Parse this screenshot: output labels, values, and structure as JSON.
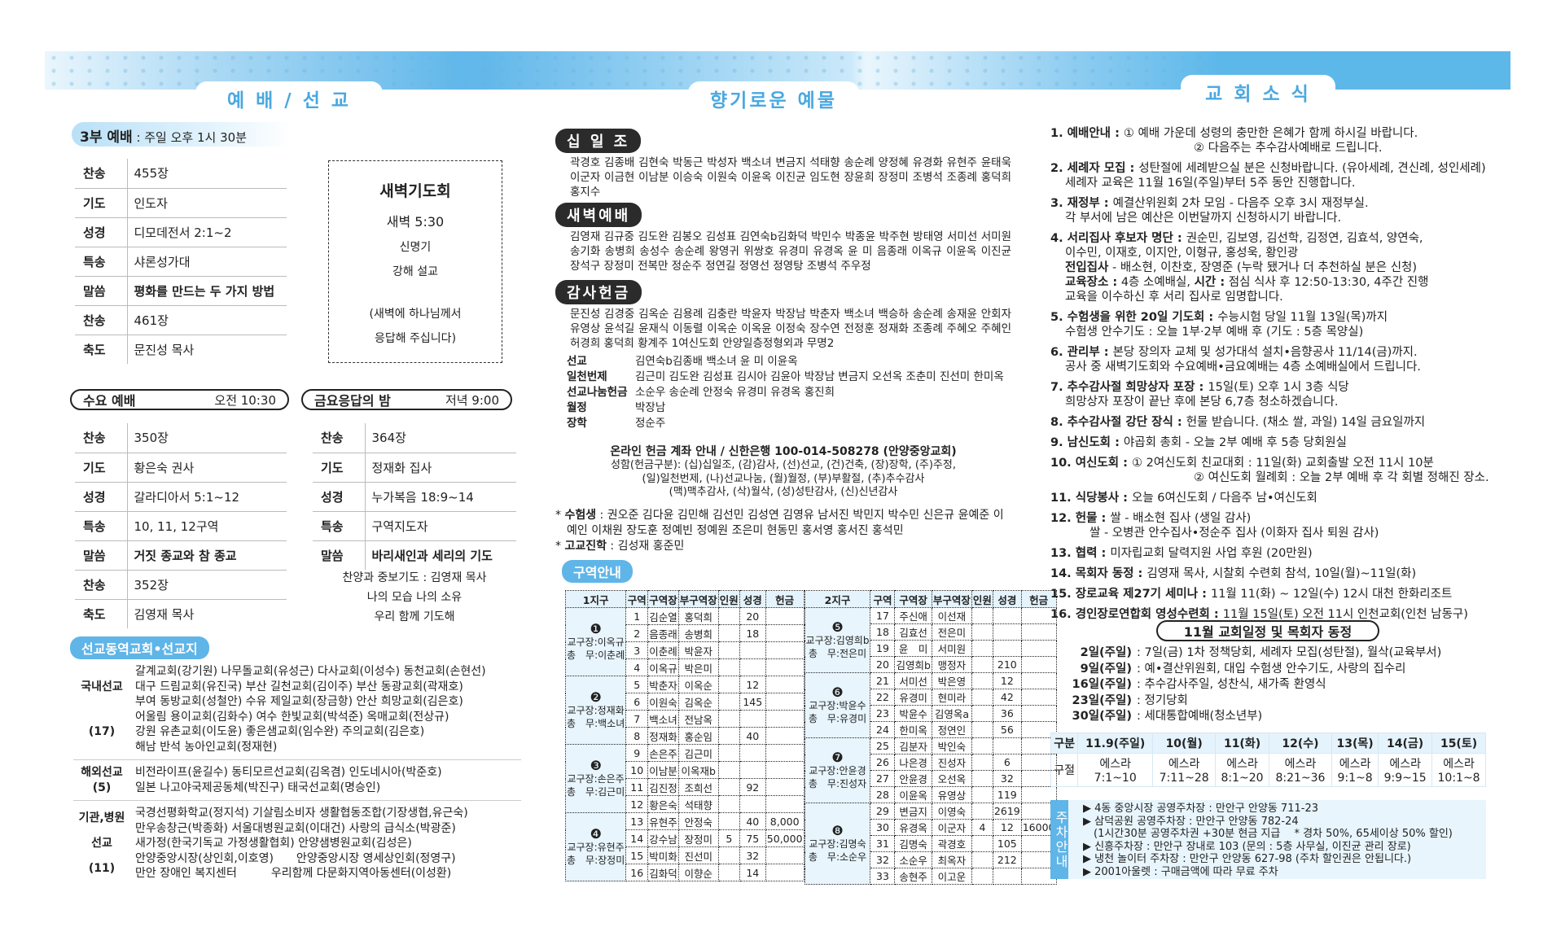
{
  "colors": {
    "banner": "#5db8ea",
    "accent": "#5fb5e8",
    "dark_pill": "#2b2b2b",
    "table_header": "#e5f3fc"
  },
  "headers": {
    "worship": "예 배 / 선 교",
    "offering": "향기로운 예물",
    "news": "교 회 소 식"
  },
  "sunday3": {
    "title": "3부 예배",
    "time": " : 주일 오후 1시 30분",
    "rows": [
      {
        "l": "찬송",
        "v": "455장"
      },
      {
        "l": "기도",
        "v": "인도자"
      },
      {
        "l": "성경",
        "v": "디모데전서 2:1~2"
      },
      {
        "l": "특송",
        "v": "샤론성가대"
      },
      {
        "l": "말씀",
        "v": "평화를 만드는 두 가지 방법",
        "b": true
      },
      {
        "l": "찬송",
        "v": "461장"
      },
      {
        "l": "축도",
        "v": "문진성 목사"
      }
    ]
  },
  "dawn": {
    "title": "새벽기도회",
    "time": "새벽 5:30",
    "leader": "신명기",
    "sermon": "강해 설교",
    "note1": "(새벽에 하나님께서",
    "note2": "응답해 주십니다)"
  },
  "wednesday": {
    "title": "수요 예배",
    "time": "오전 10:30",
    "rows": [
      {
        "l": "찬송",
        "v": "350장"
      },
      {
        "l": "기도",
        "v": "황은숙 권사"
      },
      {
        "l": "성경",
        "v": "갈라디아서 5:1~12"
      },
      {
        "l": "특송",
        "v": "10, 11, 12구역"
      },
      {
        "l": "말씀",
        "v": "거짓 종교와 참 종교",
        "b": true
      },
      {
        "l": "찬송",
        "v": "352장"
      },
      {
        "l": "축도",
        "v": "김영재 목사"
      }
    ]
  },
  "friday": {
    "title": "금요응답의 밤",
    "time": "저녁 9:00",
    "rows": [
      {
        "l": "찬송",
        "v": "364장"
      },
      {
        "l": "기도",
        "v": "정재화 집사"
      },
      {
        "l": "성경",
        "v": "누가복음 18:9~14"
      },
      {
        "l": "특송",
        "v": "구역지도자"
      },
      {
        "l": "말씀",
        "v": "바리새인과 세리의 기도",
        "b": true
      }
    ],
    "extra": [
      "찬양과 중보기도 : 김영재 목사",
      "나의 모습 나의 소유",
      "우리 함께 기도해"
    ]
  },
  "missions": {
    "title": "선교동역교회•선교지",
    "sections": [
      {
        "head": [
          "국내선교",
          "(17)"
        ],
        "lines": [
          "갈계교회(강기원) 나무돌교회(유성근) 다사교회(이성수) 동천교회(손현선)",
          "대구 드림교회(유진국) 부산 길천교회(김이주) 부산 동광교회(곽재호)",
          "부여 동방교회(성철안) 수유 제일교회(장금항) 안산 희망교회(김은호)",
          "어울림 용이교회(김화수) 여수 한빛교회(박석준) 옥매교회(전상규)",
          "강원 유촌교회(이도윤) 좋은샘교회(임수완) 주의교회(김은호)",
          "해남 반석 농아인교회(정재현)"
        ]
      },
      {
        "head": [
          "해외선교",
          "(5)"
        ],
        "lines": [
          "비전라이프(윤길수) 동티모르선교회(김옥겸) 인도네시아(박준호)",
          "일본 나고야국제공동체(박진구) 태국선교회(명승인)"
        ]
      },
      {
        "head": [
          "기관,병원",
          "선교",
          "(11)"
        ],
        "lines": [
          "국경선평화학교(정지석) 기살림소비자 생활협동조합(기장생협,유근숙)",
          "만우송창근(박종화) 서울대병원교회(이대건) 사랑의 급식소(박광준)",
          "새가정(한국기독교 가정생활협회) 안양샘병원교회(김성은)",
          "안양중앙시장(상인회,이호영)　　안양중앙시장 영세상인회(정영구)",
          "만안 장애인 복지센터　　　우리함께 다문화지역아동센터(이성환)"
        ]
      }
    ]
  },
  "tithe": {
    "title": "십 일 조",
    "names": "곽경호 김종배 김현숙 박동근 박성자 백소녀 변금지 석태향 송순례 양정혜 유경화 유현주 윤태욱 이군자 이금현 이남분 이승숙 이원숙 이윤옥 이진균 임도현 장윤희 장정미 조병석 조종례 홍덕희 홍지수"
  },
  "dawn_offering": {
    "title": "새벽예배",
    "names": "김영재 김규중 김도완 김봉오 김성표 김연숙b김화덕 박민수 박종윤 박주현 방태영 서미선 서미원 송기화 송병희 송성수 송순례 왕영귀 위쌍호 유경미 유경옥 윤 미 음종래 이옥규 이윤옥 이진균 장석구 장정미 전복만 정순주 정연길 정영선 정영탕 조병석 주우정"
  },
  "thanks": {
    "title": "감사헌금",
    "names": "문진성 김경중 김옥순 김용례 김충란 박윤자 박장남 박춘자 백소녀 백승하 송순례 송재윤 안회자 유영상 윤석길 윤재식 이동렬 이옥순 이옥윤 이정숙 장수연 전정훈 정재화 조종례 주혜오 주혜인 허경희 홍덕희 황계주 1여신도회 안양일층정형외과 무명2"
  },
  "other_offerings": [
    {
      "k": "선교",
      "v": "김연숙b김종배 백소녀 윤 미 이윤옥"
    },
    {
      "k": "일천번제",
      "v": "김근미 김도완 김성표 김시아 김윤아 박장남 변금지 오선옥 조춘미 진선미 한미옥"
    },
    {
      "k": "선교나눔헌금",
      "v": "소순우 송순례 안정숙 유경미 유경옥 홍진희"
    },
    {
      "k": "월정",
      "v": "박장남"
    },
    {
      "k": "장학",
      "v": "정순주"
    }
  ],
  "online": {
    "title": "온라인 헌금 계좌 안내 / 신한은행 100-014-508278 (안양중앙교회)",
    "lines": [
      "성함(헌금구분): (십)십일조, (감)감사, (선)선교, (건)건축, (장)장학, (주)주정,",
      "(일)일천번제, (나)선교나눔, (월)월정, (부)부활절, (추)추수감사",
      "(맥)맥추감사, (삭)월삭, (성)성탄감사, (신)신년감사"
    ]
  },
  "students": {
    "label": "수험생",
    "names": "권오준 김다윤 김민해 김선민 김성연 김영유 남서진 박민지 박수민 신은규 윤예준 이예인 이채원 장도훈 정예빈 정예원 조은미 현동민 홍서영 홍서진 홍석민"
  },
  "highschool": {
    "label": "고교진학",
    "names": "김성재 홍준민"
  },
  "district": {
    "title": "구역안내",
    "columns": [
      "구역",
      "구역장",
      "부구역장",
      "인원",
      "성경",
      "헌금"
    ],
    "tables": [
      {
        "name": "1지구",
        "groups": [
          {
            "badge": "❶",
            "leader": "교구장:이옥규",
            "sec": "총　무:이춘례",
            "rows": [
              [
                "1",
                "김순열",
                "홍덕희",
                "",
                "20",
                ""
              ],
              [
                "2",
                "음종래",
                "송병희",
                "",
                "18",
                ""
              ],
              [
                "3",
                "이춘례",
                "박윤자",
                "",
                "",
                ""
              ],
              [
                "4",
                "이옥규",
                "박은미",
                "",
                "",
                ""
              ]
            ]
          },
          {
            "badge": "❷",
            "leader": "교구장:정재화",
            "sec": "총　무:백소녀",
            "rows": [
              [
                "5",
                "박춘자",
                "이옥순",
                "",
                "12",
                ""
              ],
              [
                "6",
                "이원숙",
                "김옥순",
                "",
                "145",
                ""
              ],
              [
                "7",
                "백소녀",
                "전남옥",
                "",
                "",
                ""
              ],
              [
                "8",
                "정재화",
                "홍순임",
                "",
                "40",
                ""
              ]
            ]
          },
          {
            "badge": "❸",
            "leader": "교구장:손은주",
            "sec": "총　무:김근미",
            "rows": [
              [
                "9",
                "손은주",
                "김근미",
                "",
                "",
                ""
              ],
              [
                "10",
                "이남분",
                "이옥재b",
                "",
                "",
                ""
              ],
              [
                "11",
                "김진정",
                "조희선",
                "",
                "92",
                ""
              ],
              [
                "12",
                "황은숙",
                "석태향",
                "",
                "",
                ""
              ]
            ]
          },
          {
            "badge": "❹",
            "leader": "교구장:유현주",
            "sec": "총　무:장정미",
            "rows": [
              [
                "13",
                "유현주",
                "안정숙",
                "",
                "40",
                "8,000"
              ],
              [
                "14",
                "강수남",
                "장정미",
                "5",
                "75",
                "50,000"
              ],
              [
                "15",
                "박미화",
                "진선미",
                "",
                "32",
                ""
              ],
              [
                "16",
                "김화덕",
                "이향순",
                "",
                "14",
                ""
              ]
            ]
          }
        ]
      },
      {
        "name": "2지구",
        "groups": [
          {
            "badge": "❺",
            "leader": "교구장:김영희b",
            "sec": "총　무:전은미",
            "rows": [
              [
                "17",
                "주신애",
                "이선재",
                "",
                "",
                ""
              ],
              [
                "18",
                "김효선",
                "전은미",
                "",
                "",
                ""
              ],
              [
                "19",
                "윤　미",
                "서미원",
                "",
                "",
                ""
              ],
              [
                "20",
                "김영희b",
                "맹정자",
                "",
                "210",
                ""
              ]
            ]
          },
          {
            "badge": "❻",
            "leader": "교구장:박윤수",
            "sec": "총　무:유경미",
            "rows": [
              [
                "21",
                "서미선",
                "박은영",
                "",
                "12",
                ""
              ],
              [
                "22",
                "유경미",
                "현미라",
                "",
                "42",
                ""
              ],
              [
                "23",
                "박윤수",
                "김영옥a",
                "",
                "36",
                ""
              ],
              [
                "24",
                "한미옥",
                "정연인",
                "",
                "56",
                ""
              ]
            ]
          },
          {
            "badge": "❼",
            "leader": "교구장:안윤경",
            "sec": "총　무:진성자",
            "rows": [
              [
                "25",
                "김분자",
                "박인숙",
                "",
                "",
                ""
              ],
              [
                "26",
                "나은경",
                "진성자",
                "",
                "6",
                ""
              ],
              [
                "27",
                "안윤경",
                "오선옥",
                "",
                "32",
                ""
              ],
              [
                "28",
                "이윤옥",
                "유영상",
                "",
                "119",
                ""
              ]
            ]
          },
          {
            "badge": "❽",
            "leader": "교구장:김명숙",
            "sec": "총　무:소순우",
            "rows": [
              [
                "29",
                "변금지",
                "이영숙",
                "",
                "2619",
                ""
              ],
              [
                "30",
                "유경옥",
                "이군자",
                "4",
                "12",
                "16000"
              ],
              [
                "31",
                "김명숙",
                "곽경호",
                "",
                "105",
                ""
              ],
              [
                "32",
                "소순우",
                "최옥자",
                "",
                "212",
                ""
              ],
              [
                "33",
                "송현주",
                "이고운",
                "",
                "",
                ""
              ]
            ]
          }
        ]
      }
    ]
  },
  "news": [
    {
      "n": "1.",
      "k": "예배안내",
      "lines": [
        [
          [
            "",
            "① 예배 가운데 성령의 충만한 은혜가 함께 하시길 바랍니다."
          ]
        ],
        [
          [
            "pad",
            "② 다음주는 추수감사예배로 드립니다."
          ]
        ]
      ]
    },
    {
      "n": "2.",
      "k": "세례자 모집",
      "lines": [
        [
          [
            "",
            "성탄절에 세례받으실 분은 신청바랍니다. (유아세례, 견신례, 성인세례)"
          ]
        ],
        [
          [
            "ln",
            "세례자 교육은 11월 16일(주일)부터 5주 동안 진행합니다."
          ]
        ]
      ]
    },
    {
      "n": "3.",
      "k": "재정부",
      "lines": [
        [
          [
            "",
            "예결산위원회 2차 모임 - 다음주 오후 3시 재정부실."
          ]
        ],
        [
          [
            "ln",
            "각 부서에 남은 예산은 이번달까지 신청하시기 바랍니다."
          ]
        ]
      ]
    },
    {
      "n": "4.",
      "k": "서리집사 후보자 명단",
      "lines": [
        [
          [
            "",
            "권순민, 김보영, 김선학, 김정연, 김효석, 양연숙,"
          ]
        ],
        [
          [
            "ln",
            "이수민, 이재호, 이지안, 이형규, 홍성욱, 황인광"
          ]
        ],
        [
          [
            "lnb",
            "전입집사"
          ],
          [
            "ln2",
            " - 배소현, 이찬호, 장영준 (누락 됐거나 더 추천하실 분은 신청)"
          ]
        ],
        [
          [
            "lnb",
            "교육장소 :"
          ],
          [
            "ln2",
            " 4층 소예배실, "
          ],
          [
            "b",
            "시간 :"
          ],
          [
            "ln2",
            " 점심 식사 후 12:50-13:30, 4주간 진행"
          ]
        ],
        [
          [
            "ln",
            "교육을 이수하신 후 서리 집사로 임명합니다."
          ]
        ]
      ]
    },
    {
      "n": "5.",
      "k": "수험생을 위한 20일 기도회",
      "lines": [
        [
          [
            "",
            "수능시험 당일 11월 13일(목)까지"
          ]
        ],
        [
          [
            "ln",
            "수험생 안수기도 : 오늘 1부·2부 예배 후 (기도 : 5층 목양실)"
          ]
        ]
      ]
    },
    {
      "n": "6.",
      "k": "관리부",
      "lines": [
        [
          [
            "",
            "본당 장의자 교체 및 성가대석 설치•음향공사 11/14(금)까지."
          ]
        ],
        [
          [
            "ln",
            "공사 중 새벽기도회와 수요예배•금요예배는 4층 소예배실에서 드립니다."
          ]
        ]
      ]
    },
    {
      "n": "7.",
      "k": "추수감사절 희망상자 포장",
      "lines": [
        [
          [
            "",
            "15일(토) 오후 1시 3층 식당"
          ]
        ],
        [
          [
            "ln",
            "희망상자 포장이 끝난 후에 본당 6,7층 청소하겠습니다."
          ]
        ]
      ]
    },
    {
      "n": "8.",
      "k": "추수감사절 강단 장식",
      "lines": [
        [
          [
            "",
            "헌물 받습니다. (채소 쌀, 과일) 14일 금요일까지"
          ]
        ]
      ]
    },
    {
      "n": "9.",
      "k": "남신도회",
      "lines": [
        [
          [
            "",
            "야곱회 총회 - 오늘 2부 예배 후 5층 당회원실"
          ]
        ]
      ]
    },
    {
      "n": "10.",
      "k": "여신도회",
      "lines": [
        [
          [
            "",
            "① 2여신도회 친교대회 : 11일(화) 교회출발 오전 11시 10분"
          ]
        ],
        [
          [
            "pad",
            "② 여신도회 월례회 : 오늘 2부 예배 후 각 회별 정해진 장소."
          ]
        ]
      ]
    },
    {
      "n": "11.",
      "k": "식당봉사",
      "lines": [
        [
          [
            "",
            "오늘 6여신도회 / 다음주 남•여신도회"
          ]
        ]
      ]
    },
    {
      "n": "12.",
      "k": "헌물",
      "lines": [
        [
          [
            "",
            "쌀 - 배소현 집사 (생일 감사)"
          ]
        ],
        [
          [
            "padm",
            "쌀 - 오병관 안수집사•정순주 집사 (이화자 집사 퇴원 감사)"
          ]
        ]
      ]
    },
    {
      "n": "13.",
      "k": "협력",
      "lines": [
        [
          [
            "",
            "미자립교회 달력지원 사업 후원 (20만원)"
          ]
        ]
      ]
    },
    {
      "n": "14.",
      "k": "목회자 동정",
      "lines": [
        [
          [
            "",
            "김영재 목사, 시찰회 수련회 참석, 10일(월)~11일(화)"
          ]
        ]
      ]
    },
    {
      "n": "15.",
      "k": "장로교육 제27기 세미나",
      "lines": [
        [
          [
            "",
            "11월 11(화) ~ 12일(수) 12시 대천 한화리조트"
          ]
        ]
      ]
    },
    {
      "n": "16.",
      "k": "경인장로연합회 영성수련회",
      "lines": [
        [
          [
            "",
            "11월 15일(토) 오전 11시 인천교회(인천 남동구)"
          ]
        ]
      ]
    }
  ],
  "schedule": {
    "title": "11월 교회일정 및 목회자 동정",
    "items": [
      {
        "d": "2일(주일)",
        "t": "7일(금) 1차 정책당회, 세례자 모집(성탄절), 월삭(교육부서)"
      },
      {
        "d": "9일(주일)",
        "t": "예•결산위원회, 대입 수험생 안수기도, 사랑의 집수리"
      },
      {
        "d": "16일(주일)",
        "t": "추수감사주일, 성찬식, 새가족 환영식"
      },
      {
        "d": "23일(주일)",
        "t": "정기당회"
      },
      {
        "d": "30일(주일)",
        "t": "세대통합예배(청소년부)"
      }
    ]
  },
  "reading": {
    "head": [
      "구분",
      "11.9(주일)",
      "10(월)",
      "11(화)",
      "12(수)",
      "13(목)",
      "14(금)",
      "15(토)"
    ],
    "label": "구절",
    "book": "에스라",
    "verses": [
      "7:1~10",
      "7:11~28",
      "8:1~20",
      "8:21~36",
      "9:1~8",
      "9:9~15",
      "10:1~8"
    ]
  },
  "parking": {
    "title": "주차안내",
    "lines": [
      "▶ 4동 중앙시장 공영주차장 : 만안구 안양동 711-23",
      "▶ 삼덕공원 공영주차장 : 만안구 안양동 782-24",
      "　(1시간30분 공영주차권 +30분 현금 지급　 * 경차 50%, 65세이상 50% 할인)",
      "▶ 신흥주차장 : 만안구 장내로 103 (문의 : 5층 사무실, 이진균 관리 장로)",
      "▶ 냉천 놀이터 주차장 : 만안구 안양동 627-98 (주차 할인권은 안됩니다.)",
      "▶ 2001아울렛 : 구매금액에 따라 무료 주차"
    ]
  }
}
